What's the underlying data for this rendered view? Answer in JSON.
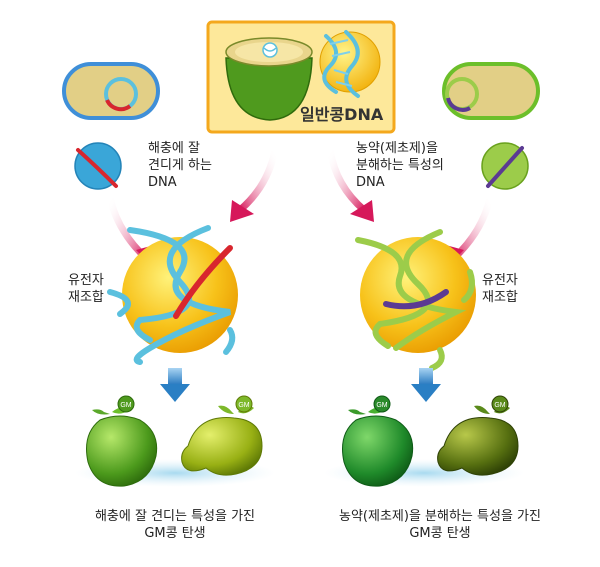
{
  "center_box": {
    "label": "일반콩DNA"
  },
  "left": {
    "gene_label": "해충에 잘\n견디게 하는\nDNA",
    "recombination_label": "유전자\n재조합",
    "result_label": "해충에 잘 견디는 특성을 가진\nGM콩 탄생",
    "bean_badge": "GM"
  },
  "right": {
    "gene_label": "농약(제초제)을\n분해하는 특성의\nDNA",
    "recombination_label": "유전자\n재조합",
    "result_label": "농약(제초제)을 분해하는 특성을 가진\nGM콩 탄생",
    "bean_badge": "GM"
  },
  "colors": {
    "center_box_fill": "#fde89a",
    "center_box_border": "#f4a81d",
    "dna_blue": "#5bc0de",
    "dna_green": "#9ccc4a",
    "insert_red": "#d8262e",
    "insert_purple": "#5b3a93",
    "cell_yellow": "#f5b400",
    "arrow_red": "#d6185a",
    "arrow_blue": "#2a7fc4"
  }
}
